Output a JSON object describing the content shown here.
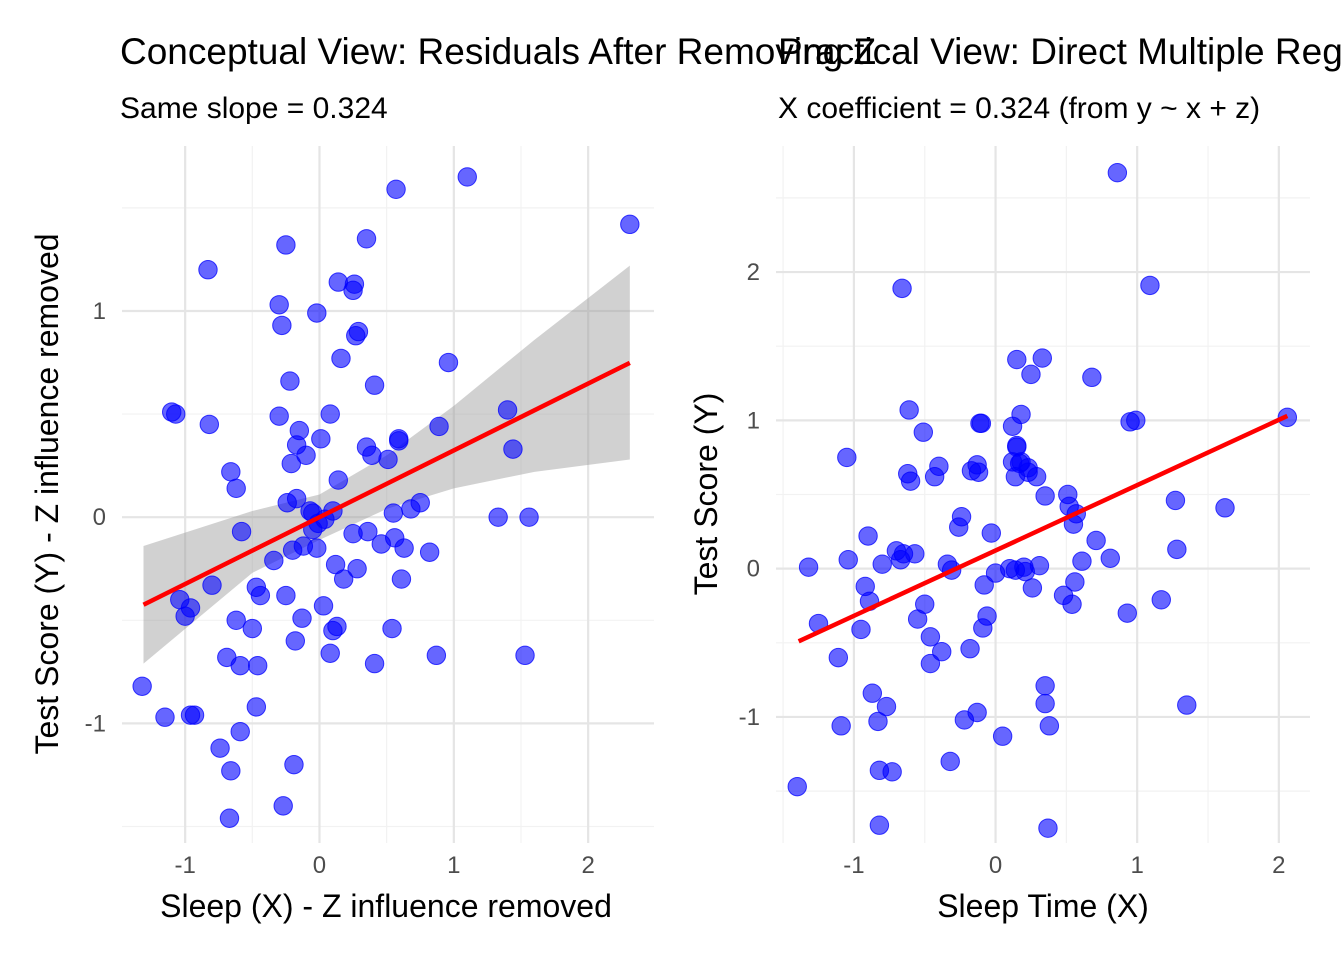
{
  "chart_data": [
    {
      "type": "scatter",
      "title": "Conceptual View: Residuals After Removing Z",
      "subtitle": "Same slope = 0.324",
      "xlabel": "Sleep (X) - Z influence removed",
      "ylabel": "Test Score (Y) - Z influence removed",
      "xlim": [
        -1.47,
        2.49
      ],
      "ylim": [
        -1.58,
        1.8
      ],
      "xticks": [
        -1,
        0,
        1,
        2
      ],
      "yticks": [
        -1,
        0,
        1
      ],
      "grid": true,
      "point_color": "#0000FF",
      "line_color": "#FF0000",
      "band_color": "#999999",
      "fit": {
        "slope": 0.324,
        "intercept": 0.0,
        "x_range": [
          -1.31,
          2.31
        ]
      },
      "ci_band": [
        {
          "x": -1.31,
          "lower": -0.71,
          "upper": -0.14
        },
        {
          "x": -0.5,
          "lower": -0.27,
          "upper": 0.03
        },
        {
          "x": 0.0,
          "lower": -0.11,
          "upper": 0.11
        },
        {
          "x": 0.5,
          "lower": 0.04,
          "upper": 0.3
        },
        {
          "x": 1.0,
          "lower": 0.14,
          "upper": 0.54
        },
        {
          "x": 1.6,
          "lower": 0.22,
          "upper": 0.86
        },
        {
          "x": 2.31,
          "lower": 0.28,
          "upper": 1.22
        }
      ],
      "series": [
        {
          "x": [
            -1.32,
            -1.15,
            -0.96,
            -0.93,
            -0.74,
            -0.66,
            -0.67,
            -0.62,
            -0.5,
            -0.46,
            -0.47,
            -0.69,
            -0.59,
            -0.59,
            -0.8,
            -0.96,
            -1.0,
            -1.04,
            -1.07,
            -1.1,
            -0.82,
            -0.83,
            -0.66,
            -0.62,
            -0.58,
            -0.47,
            -0.44,
            -0.34,
            -0.3,
            -0.25,
            -0.3,
            -0.28,
            -0.22,
            -0.15,
            -0.17,
            -0.1,
            -0.02,
            0.01,
            0.08,
            0.1,
            0.14,
            0.16,
            0.27,
            0.29,
            0.25,
            0.26,
            0.35,
            0.41,
            0.57,
            0.35,
            0.39,
            0.51,
            0.36,
            0.68,
            0.46,
            0.59,
            0.63,
            0.75,
            0.82,
            0.89,
            0.96,
            1.1,
            1.4,
            1.44,
            1.33,
            1.56,
            1.53,
            2.31,
            0.56,
            0.41,
            0.87,
            0.55,
            0.54,
            0.61,
            0.59,
            0.28,
            0.13,
            0.18,
            0.12,
            0.08,
            0.03,
            0.1,
            0.14,
            -0.07,
            -0.13,
            -0.25,
            -0.18,
            -0.19,
            -0.21,
            -0.12,
            -0.05,
            -0.05,
            -0.01,
            0.04,
            -0.17,
            -0.24,
            -0.02,
            -0.2,
            -0.27,
            0.25
          ],
          "y": [
            -0.82,
            -0.97,
            -0.96,
            -0.96,
            -1.12,
            -1.23,
            -1.46,
            -0.5,
            -0.54,
            -0.72,
            -0.92,
            -0.68,
            -0.72,
            -1.04,
            -0.33,
            -0.44,
            -0.48,
            -0.4,
            0.5,
            0.51,
            0.45,
            1.2,
            0.22,
            0.14,
            -0.07,
            -0.34,
            -0.38,
            -0.21,
            0.49,
            1.32,
            1.03,
            0.93,
            0.66,
            0.42,
            0.35,
            0.3,
            0.99,
            0.38,
            0.5,
            0.03,
            0.18,
            0.77,
            0.88,
            0.9,
            1.1,
            1.13,
            1.35,
            0.64,
            1.59,
            0.34,
            0.3,
            0.28,
            -0.07,
            0.04,
            -0.13,
            0.38,
            -0.15,
            0.07,
            -0.17,
            0.44,
            0.75,
            1.65,
            0.52,
            0.33,
            0.0,
            0.0,
            -0.67,
            1.42,
            -0.1,
            -0.71,
            -0.67,
            0.02,
            -0.54,
            -0.3,
            0.37,
            -0.25,
            -0.53,
            -0.3,
            -0.23,
            -0.66,
            -0.43,
            -0.55,
            1.14,
            0.03,
            -0.49,
            -0.38,
            -0.6,
            -1.2,
            0.26,
            -0.14,
            -0.06,
            0.02,
            -0.03,
            -0.01,
            0.09,
            0.07,
            -0.15,
            -0.16,
            -1.4,
            -0.08
          ]
        }
      ]
    },
    {
      "type": "scatter",
      "title": "Practical View: Direct Multiple Regression",
      "subtitle": "X coefficient = 0.324 (from y ~ x + z)",
      "xlabel": "Sleep Time (X)",
      "ylabel": "Test Score (Y)",
      "xlim": [
        -1.55,
        2.22
      ],
      "ylim": [
        -1.85,
        2.85
      ],
      "xticks": [
        -1,
        0,
        1,
        2
      ],
      "yticks": [
        -1,
        0,
        1,
        2
      ],
      "grid": true,
      "point_color": "#0000FF",
      "line_color": "#FF0000",
      "fit": {
        "x_range": [
          -1.39,
          2.06
        ],
        "y_range": [
          -0.49,
          1.03
        ]
      },
      "series": [
        {
          "x": [
            -1.4,
            -1.32,
            -1.25,
            -1.11,
            -1.09,
            -1.04,
            -1.05,
            -0.95,
            -0.9,
            -0.92,
            -0.89,
            -0.87,
            -0.83,
            -0.82,
            -0.82,
            -0.8,
            -0.77,
            -0.73,
            -0.7,
            -0.67,
            -0.66,
            -0.61,
            -0.6,
            -0.57,
            -0.55,
            -0.51,
            -0.5,
            -0.46,
            -0.46,
            -0.43,
            -0.4,
            -0.38,
            -0.34,
            -0.32,
            -0.31,
            -0.26,
            -0.24,
            -0.22,
            -0.18,
            -0.13,
            -0.12,
            -0.13,
            -0.11,
            -0.1,
            -0.08,
            -0.03,
            0.0,
            0.1,
            0.12,
            0.15,
            0.15,
            0.17,
            0.18,
            0.2,
            0.21,
            0.23,
            0.25,
            0.26,
            0.29,
            0.33,
            0.35,
            0.35,
            0.35,
            0.38,
            0.48,
            0.51,
            0.52,
            0.54,
            0.55,
            0.56,
            0.57,
            0.61,
            0.68,
            0.71,
            0.81,
            0.93,
            0.95,
            0.99,
            1.09,
            1.17,
            1.27,
            1.28,
            1.35,
            1.62,
            2.06,
            0.86,
            -0.65,
            -0.62,
            0.31,
            0.14,
            0.12,
            0.23,
            0.15,
            -0.17,
            0.18,
            -0.06,
            -0.09,
            0.05,
            0.37,
            0.14
          ],
          "y": [
            -1.47,
            0.01,
            -0.37,
            -0.6,
            -1.06,
            0.06,
            0.75,
            -0.41,
            0.22,
            -0.12,
            -0.22,
            -0.84,
            -1.03,
            -1.36,
            -1.73,
            0.03,
            -0.93,
            -1.37,
            0.12,
            0.06,
            1.89,
            1.07,
            0.59,
            0.1,
            -0.34,
            0.92,
            -0.24,
            -0.46,
            -0.64,
            0.62,
            0.69,
            -0.56,
            0.03,
            -1.3,
            -0.01,
            0.28,
            0.35,
            -1.02,
            -0.54,
            0.7,
            0.65,
            -0.97,
            0.98,
            0.98,
            -0.11,
            0.24,
            -0.03,
            0.0,
            0.96,
            0.83,
            1.41,
            0.71,
            1.04,
            0.01,
            -0.02,
            0.68,
            1.31,
            -0.13,
            0.62,
            1.42,
            0.49,
            -0.79,
            -0.91,
            -1.06,
            -0.18,
            0.5,
            0.42,
            -0.24,
            0.3,
            -0.09,
            0.37,
            0.05,
            1.29,
            0.19,
            0.07,
            -0.3,
            0.99,
            1.0,
            1.91,
            -0.21,
            0.46,
            0.13,
            -0.92,
            0.41,
            1.02,
            2.67,
            0.1,
            0.64,
            0.02,
            0.62,
            0.72,
            0.65,
            0.82,
            0.66,
            0.72,
            -0.32,
            -0.4,
            -1.13,
            -1.75,
            -0.01
          ]
        }
      ]
    }
  ]
}
